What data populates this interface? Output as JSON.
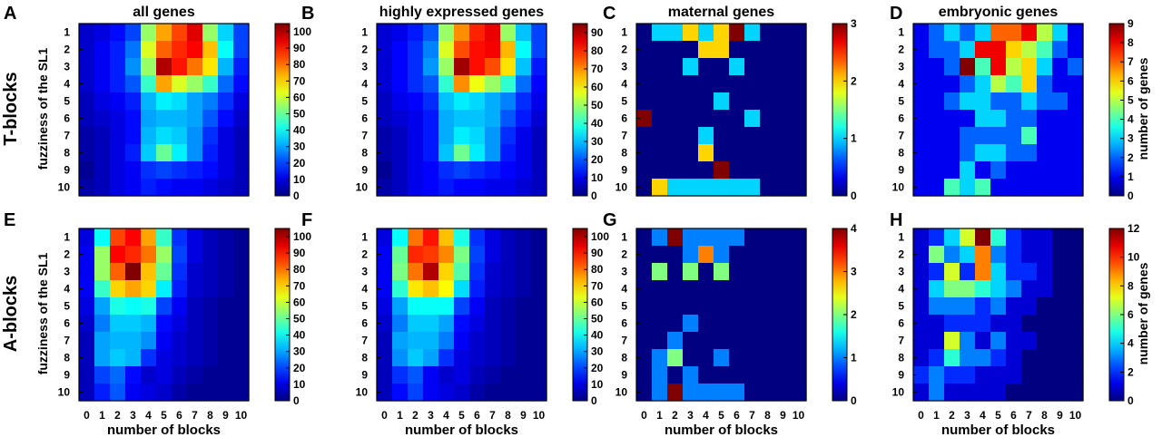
{
  "figure": {
    "row_labels": [
      "T-blocks",
      "A-blocks"
    ],
    "panel_letters": [
      "A",
      "B",
      "C",
      "D",
      "E",
      "F",
      "G",
      "H"
    ],
    "colorbar_label": "number of genes",
    "ylabel": "fuzziness of the SL1",
    "xlabel": "number of blocks"
  },
  "chart_data": [
    {
      "type": "heatmap",
      "letter": "A",
      "title": "all genes",
      "row": "T-blocks",
      "x_categories": [
        "0",
        "1",
        "2",
        "3",
        "4",
        "5",
        "6",
        "7",
        "8",
        "9",
        "10"
      ],
      "y_categories": [
        "1",
        "2",
        "3",
        "4",
        "5",
        "6",
        "7",
        "8",
        "9",
        "10"
      ],
      "colorbar": {
        "min": 0,
        "max": 105,
        "ticks": [
          0,
          10,
          20,
          30,
          40,
          50,
          60,
          70,
          80,
          90,
          100
        ]
      },
      "values": [
        [
          8,
          10,
          14,
          20,
          55,
          75,
          85,
          95,
          55,
          35,
          20
        ],
        [
          8,
          12,
          16,
          25,
          62,
          82,
          88,
          92,
          72,
          40,
          20
        ],
        [
          8,
          12,
          16,
          28,
          55,
          100,
          90,
          80,
          68,
          32,
          16
        ],
        [
          8,
          12,
          16,
          22,
          45,
          75,
          62,
          55,
          45,
          24,
          14
        ],
        [
          6,
          10,
          12,
          16,
          32,
          38,
          36,
          30,
          26,
          18,
          10
        ],
        [
          6,
          8,
          10,
          14,
          30,
          32,
          32,
          30,
          22,
          14,
          8
        ],
        [
          4,
          6,
          10,
          14,
          32,
          36,
          34,
          28,
          18,
          10,
          6
        ],
        [
          4,
          6,
          10,
          16,
          34,
          50,
          38,
          28,
          16,
          10,
          6
        ],
        [
          2,
          6,
          10,
          12,
          18,
          20,
          18,
          16,
          14,
          10,
          6
        ],
        [
          4,
          6,
          10,
          12,
          16,
          14,
          12,
          12,
          10,
          8,
          6
        ]
      ]
    },
    {
      "type": "heatmap",
      "letter": "B",
      "title": "highly expressed genes",
      "row": "T-blocks",
      "x_categories": [
        "0",
        "1",
        "2",
        "3",
        "4",
        "5",
        "6",
        "7",
        "8",
        "9",
        "10"
      ],
      "y_categories": [
        "1",
        "2",
        "3",
        "4",
        "5",
        "6",
        "7",
        "8",
        "9",
        "10"
      ],
      "colorbar": {
        "min": 0,
        "max": 95,
        "ticks": [
          0,
          10,
          20,
          30,
          40,
          50,
          60,
          70,
          80,
          90
        ]
      },
      "values": [
        [
          8,
          10,
          14,
          20,
          50,
          70,
          80,
          85,
          50,
          30,
          18
        ],
        [
          8,
          12,
          16,
          24,
          56,
          76,
          82,
          84,
          66,
          36,
          18
        ],
        [
          8,
          12,
          16,
          26,
          50,
          92,
          82,
          76,
          62,
          30,
          14
        ],
        [
          8,
          12,
          16,
          20,
          40,
          70,
          58,
          50,
          40,
          22,
          12
        ],
        [
          6,
          10,
          12,
          16,
          30,
          34,
          32,
          28,
          24,
          16,
          10
        ],
        [
          6,
          8,
          10,
          14,
          28,
          30,
          30,
          28,
          20,
          14,
          8
        ],
        [
          4,
          6,
          10,
          14,
          28,
          34,
          32,
          26,
          16,
          10,
          6
        ],
        [
          4,
          6,
          10,
          14,
          30,
          46,
          34,
          26,
          14,
          10,
          6
        ],
        [
          2,
          6,
          10,
          12,
          16,
          18,
          16,
          14,
          12,
          10,
          6
        ],
        [
          4,
          6,
          10,
          12,
          14,
          12,
          12,
          10,
          10,
          8,
          6
        ]
      ]
    },
    {
      "type": "heatmap",
      "letter": "C",
      "title": "maternal genes",
      "row": "T-blocks",
      "x_categories": [
        "0",
        "1",
        "2",
        "3",
        "4",
        "5",
        "6",
        "7",
        "8",
        "9",
        "10"
      ],
      "y_categories": [
        "1",
        "2",
        "3",
        "4",
        "5",
        "6",
        "7",
        "8",
        "9",
        "10"
      ],
      "colorbar": {
        "min": 0,
        "max": 3,
        "ticks": [
          0,
          1,
          2,
          3
        ]
      },
      "values": [
        [
          0,
          1,
          1,
          2,
          1,
          2,
          3,
          1,
          0,
          0,
          0
        ],
        [
          0,
          0,
          0,
          0,
          2,
          2,
          0,
          0,
          0,
          0,
          0
        ],
        [
          0,
          0,
          0,
          1,
          0,
          0,
          1,
          0,
          0,
          0,
          0
        ],
        [
          0,
          0,
          0,
          0,
          0,
          0,
          0,
          0,
          0,
          0,
          0
        ],
        [
          0,
          0,
          0,
          0,
          0,
          1,
          0,
          0,
          0,
          0,
          0
        ],
        [
          3,
          0,
          0,
          0,
          0,
          0,
          0,
          1,
          0,
          0,
          0
        ],
        [
          0,
          0,
          0,
          0,
          1,
          0,
          0,
          0,
          0,
          0,
          0
        ],
        [
          0,
          0,
          0,
          0,
          2,
          0,
          0,
          0,
          0,
          0,
          0
        ],
        [
          0,
          0,
          0,
          0,
          0,
          3,
          0,
          0,
          0,
          0,
          0
        ],
        [
          0,
          2,
          1,
          1,
          1,
          1,
          1,
          1,
          0,
          0,
          0
        ]
      ]
    },
    {
      "type": "heatmap",
      "letter": "D",
      "title": "embryonic genes",
      "row": "T-blocks",
      "x_categories": [
        "0",
        "1",
        "2",
        "3",
        "4",
        "5",
        "6",
        "7",
        "8",
        "9",
        "10"
      ],
      "y_categories": [
        "1",
        "2",
        "3",
        "4",
        "5",
        "6",
        "7",
        "8",
        "9",
        "10"
      ],
      "colorbar": {
        "min": 0,
        "max": 9,
        "ticks": [
          0,
          1,
          2,
          3,
          4,
          5,
          6,
          7,
          8,
          9
        ]
      },
      "values": [
        [
          1,
          2,
          3,
          2,
          3,
          7,
          7,
          8,
          5,
          3,
          1
        ],
        [
          1,
          2,
          2,
          3,
          8,
          8,
          6,
          5,
          4,
          2,
          1
        ],
        [
          1,
          1,
          2,
          9,
          4,
          8,
          5,
          6,
          3,
          1,
          2
        ],
        [
          1,
          1,
          1,
          2,
          3,
          5,
          4,
          6,
          2,
          1,
          1
        ],
        [
          1,
          1,
          2,
          3,
          3,
          2,
          2,
          3,
          2,
          2,
          1
        ],
        [
          1,
          1,
          1,
          1,
          3,
          3,
          2,
          2,
          1,
          1,
          1
        ],
        [
          1,
          1,
          1,
          2,
          2,
          2,
          2,
          4,
          1,
          1,
          1
        ],
        [
          1,
          1,
          1,
          2,
          3,
          3,
          2,
          2,
          1,
          1,
          1
        ],
        [
          1,
          1,
          1,
          3,
          1,
          2,
          1,
          1,
          1,
          1,
          1
        ],
        [
          1,
          1,
          4,
          3,
          4,
          1,
          1,
          1,
          1,
          1,
          1
        ]
      ]
    },
    {
      "type": "heatmap",
      "letter": "E",
      "title": "",
      "row": "A-blocks",
      "x_categories": [
        "0",
        "1",
        "2",
        "3",
        "4",
        "5",
        "6",
        "7",
        "8",
        "9",
        "10"
      ],
      "y_categories": [
        "1",
        "2",
        "3",
        "4",
        "5",
        "6",
        "7",
        "8",
        "9",
        "10"
      ],
      "colorbar": {
        "min": 0,
        "max": 105,
        "ticks": [
          0,
          10,
          20,
          30,
          40,
          50,
          60,
          70,
          80,
          90,
          100
        ]
      },
      "values": [
        [
          10,
          40,
          85,
          92,
          75,
          45,
          18,
          10,
          6,
          4,
          2
        ],
        [
          12,
          55,
          92,
          88,
          80,
          55,
          20,
          10,
          6,
          4,
          2
        ],
        [
          12,
          55,
          82,
          105,
          72,
          50,
          18,
          8,
          6,
          4,
          2
        ],
        [
          12,
          45,
          70,
          75,
          70,
          38,
          16,
          8,
          6,
          4,
          2
        ],
        [
          10,
          30,
          42,
          40,
          42,
          20,
          12,
          6,
          4,
          2,
          2
        ],
        [
          8,
          26,
          34,
          34,
          32,
          14,
          10,
          6,
          4,
          2,
          2
        ],
        [
          6,
          30,
          32,
          32,
          28,
          12,
          8,
          6,
          4,
          2,
          2
        ],
        [
          6,
          30,
          34,
          32,
          18,
          10,
          8,
          6,
          4,
          2,
          2
        ],
        [
          6,
          20,
          24,
          14,
          8,
          10,
          6,
          4,
          2,
          2,
          2
        ],
        [
          6,
          16,
          22,
          12,
          10,
          8,
          4,
          2,
          2,
          2,
          2
        ]
      ]
    },
    {
      "type": "heatmap",
      "letter": "F",
      "title": "",
      "row": "A-blocks",
      "x_categories": [
        "0",
        "1",
        "2",
        "3",
        "4",
        "5",
        "6",
        "7",
        "8",
        "9",
        "10"
      ],
      "y_categories": [
        "1",
        "2",
        "3",
        "4",
        "5",
        "6",
        "7",
        "8",
        "9",
        "10"
      ],
      "colorbar": {
        "min": 0,
        "max": 105,
        "ticks": [
          0,
          10,
          20,
          30,
          40,
          50,
          60,
          70,
          80,
          90,
          100
        ]
      },
      "values": [
        [
          10,
          40,
          80,
          90,
          72,
          42,
          18,
          10,
          6,
          4,
          2
        ],
        [
          12,
          50,
          88,
          86,
          78,
          52,
          20,
          10,
          6,
          4,
          2
        ],
        [
          12,
          52,
          80,
          100,
          70,
          48,
          18,
          8,
          6,
          4,
          2
        ],
        [
          12,
          44,
          68,
          72,
          66,
          36,
          16,
          8,
          6,
          4,
          2
        ],
        [
          10,
          30,
          40,
          40,
          40,
          20,
          12,
          6,
          4,
          2,
          2
        ],
        [
          8,
          26,
          34,
          34,
          30,
          14,
          10,
          6,
          4,
          2,
          2
        ],
        [
          6,
          30,
          32,
          32,
          26,
          12,
          8,
          6,
          4,
          2,
          2
        ],
        [
          6,
          28,
          34,
          30,
          18,
          10,
          8,
          6,
          4,
          2,
          2
        ],
        [
          6,
          18,
          22,
          12,
          8,
          10,
          6,
          4,
          2,
          2,
          2
        ],
        [
          6,
          14,
          20,
          12,
          10,
          8,
          4,
          2,
          2,
          2,
          2
        ]
      ]
    },
    {
      "type": "heatmap",
      "letter": "G",
      "title": "",
      "row": "A-blocks",
      "x_categories": [
        "0",
        "1",
        "2",
        "3",
        "4",
        "5",
        "6",
        "7",
        "8",
        "9",
        "10"
      ],
      "y_categories": [
        "1",
        "2",
        "3",
        "4",
        "5",
        "6",
        "7",
        "8",
        "9",
        "10"
      ],
      "colorbar": {
        "min": 0,
        "max": 4,
        "ticks": [
          0,
          1,
          2,
          3,
          4
        ]
      },
      "values": [
        [
          0,
          1,
          4,
          1,
          1,
          1,
          1,
          0,
          0,
          0,
          0
        ],
        [
          0,
          0,
          0,
          1,
          3,
          1,
          0,
          0,
          0,
          0,
          0
        ],
        [
          0,
          2,
          0,
          2,
          0,
          2,
          0,
          0,
          0,
          0,
          0
        ],
        [
          0,
          0,
          0,
          0,
          0,
          0,
          0,
          0,
          0,
          0,
          0
        ],
        [
          0,
          0,
          0,
          0,
          0,
          0,
          0,
          0,
          0,
          0,
          0
        ],
        [
          0,
          0,
          0,
          1,
          0,
          0,
          0,
          0,
          0,
          0,
          0
        ],
        [
          0,
          0,
          1,
          0,
          0,
          0,
          0,
          0,
          0,
          0,
          0
        ],
        [
          0,
          1,
          2,
          0,
          0,
          1,
          0,
          0,
          0,
          0,
          0
        ],
        [
          0,
          1,
          0,
          1,
          0,
          0,
          0,
          0,
          0,
          0,
          0
        ],
        [
          0,
          1,
          4,
          1,
          1,
          1,
          1,
          0,
          0,
          0,
          0
        ]
      ]
    },
    {
      "type": "heatmap",
      "letter": "H",
      "title": "",
      "row": "A-blocks",
      "x_categories": [
        "0",
        "1",
        "2",
        "3",
        "4",
        "5",
        "6",
        "7",
        "8",
        "9",
        "10"
      ],
      "y_categories": [
        "1",
        "2",
        "3",
        "4",
        "5",
        "6",
        "7",
        "8",
        "9",
        "10"
      ],
      "colorbar": {
        "min": 0,
        "max": 12,
        "ticks": [
          0,
          2,
          4,
          6,
          8,
          10,
          12
        ]
      },
      "values": [
        [
          1,
          2,
          4,
          7,
          12,
          5,
          2,
          1,
          1,
          0,
          0
        ],
        [
          1,
          6,
          3,
          4,
          9,
          3,
          2,
          1,
          1,
          0,
          0
        ],
        [
          1,
          2,
          7,
          2,
          9,
          4,
          2,
          2,
          1,
          0,
          0
        ],
        [
          1,
          4,
          6,
          6,
          5,
          4,
          3,
          1,
          1,
          0,
          0
        ],
        [
          1,
          3,
          3,
          3,
          2,
          3,
          1,
          1,
          0,
          0,
          0
        ],
        [
          1,
          1,
          2,
          2,
          2,
          1,
          1,
          0,
          0,
          0,
          0
        ],
        [
          1,
          1,
          7,
          3,
          1,
          3,
          1,
          1,
          0,
          0,
          0
        ],
        [
          1,
          2,
          5,
          3,
          3,
          2,
          1,
          0,
          0,
          0,
          0
        ],
        [
          2,
          3,
          2,
          2,
          1,
          1,
          1,
          0,
          0,
          0,
          0
        ],
        [
          1,
          3,
          1,
          1,
          1,
          1,
          0,
          0,
          0,
          0,
          0
        ]
      ]
    }
  ]
}
